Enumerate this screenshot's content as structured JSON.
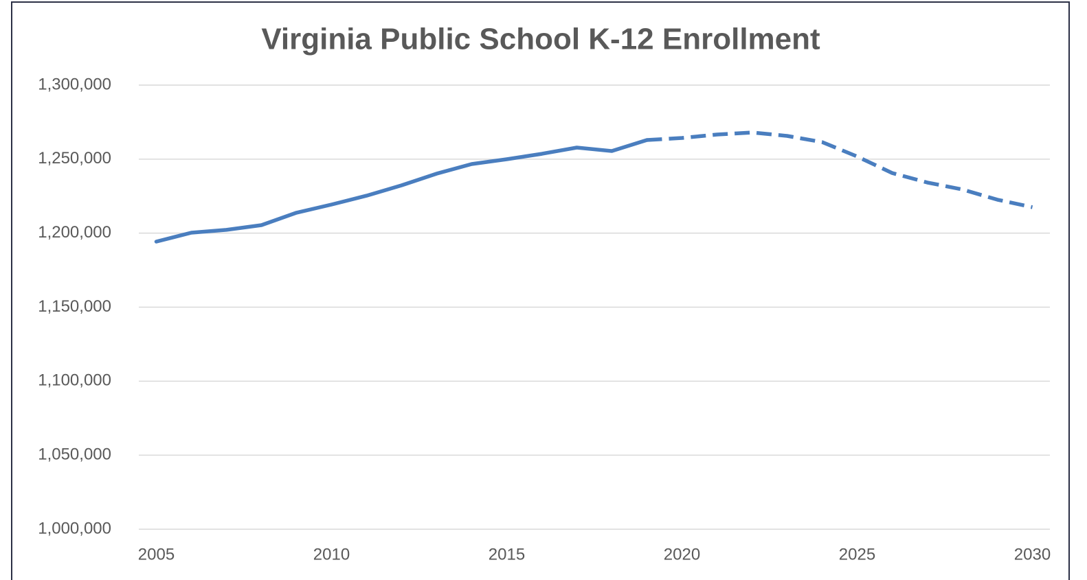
{
  "chart_data": {
    "type": "line",
    "title": "Virginia Public School K-12 Enrollment",
    "x": [
      2005,
      2006,
      2007,
      2008,
      2009,
      2010,
      2011,
      2012,
      2013,
      2014,
      2015,
      2016,
      2017,
      2018,
      2019,
      2020,
      2021,
      2022,
      2023,
      2024,
      2025,
      2026,
      2027,
      2028,
      2029,
      2030
    ],
    "series": [
      {
        "color": "#4a7ebf",
        "dashed": false,
        "values": [
          1194300,
          1200300,
          1202200,
          1205400,
          1213800,
          1219300,
          1225300,
          1232300,
          1240200,
          1246700,
          1249900,
          1253600,
          1257800,
          1255500,
          1262900,
          null,
          null,
          null,
          null,
          null,
          null,
          null,
          null,
          null,
          null,
          null
        ]
      },
      {
        "color": "#4a7ebf",
        "dashed": true,
        "values": [
          null,
          null,
          null,
          null,
          null,
          null,
          null,
          null,
          null,
          null,
          null,
          null,
          null,
          null,
          1262900,
          1264300,
          1266600,
          1268000,
          1265700,
          1261500,
          1251800,
          1240600,
          1234200,
          1229500,
          1222600,
          1217500
        ]
      }
    ],
    "xlim": [
      2004.5,
      2030.5
    ],
    "xticks": [
      2005,
      2010,
      2015,
      2020,
      2025,
      2030
    ],
    "ylim": [
      1000000,
      1300000
    ],
    "yticks": [
      {
        "value": 1000000,
        "label": "1,000,000"
      },
      {
        "value": 1050000,
        "label": "1,050,000"
      },
      {
        "value": 1100000,
        "label": "1,100,000"
      },
      {
        "value": 1150000,
        "label": "1,150,000"
      },
      {
        "value": 1200000,
        "label": "1,200,000"
      },
      {
        "value": 1250000,
        "label": "1,250,000"
      },
      {
        "value": 1300000,
        "label": "1,300,000"
      }
    ],
    "grid": true
  }
}
